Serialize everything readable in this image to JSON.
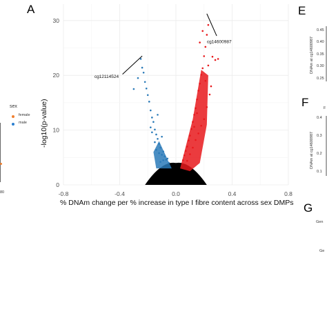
{
  "panels": {
    "a": "A",
    "e": "E",
    "f": "F",
    "g": "G"
  },
  "legend": {
    "title": "sex",
    "items": [
      {
        "label": "female",
        "color": "#f08030"
      },
      {
        "label": "male",
        "color": "#2b7fd0"
      }
    ]
  },
  "left_fragment": {
    "tick": "80"
  },
  "right_fragments": {
    "e_ylabel": "DNAm at cg14600987",
    "e_ticks": [
      "0.45",
      "0.40",
      "0.35",
      "0.30",
      "0.25"
    ],
    "f_ylabel": "DNAm at cg14600987",
    "f_title_fragment": "F",
    "f_ticks": [
      "0.4",
      "0.3",
      "0.2",
      "0.1"
    ],
    "g_lines": [
      "Gen",
      "Ge"
    ]
  },
  "colors": {
    "up": "#e8191c",
    "down": "#2a7ab8",
    "ns": "#000000",
    "grid": "#ebebeb"
  },
  "chart_data": {
    "type": "scatter",
    "title": "",
    "xlabel": "% DNAm change per % increase in type I fibre content across sex DMPs",
    "ylabel": "-log10(p-value)",
    "xlim": [
      -0.8,
      0.8
    ],
    "ylim": [
      0,
      33
    ],
    "x_ticks": [
      "-0.8",
      "-0.4",
      "0.0",
      "0.4",
      "0.8"
    ],
    "y_ticks": [
      "0",
      "10",
      "20",
      "30"
    ],
    "grid": true,
    "series": [
      {
        "group": "hypomethylated (significant)",
        "color": "#2a7ab8",
        "points": [
          [
            -0.04,
            3.2
          ],
          [
            -0.05,
            4.0
          ],
          [
            -0.06,
            3.6
          ],
          [
            -0.07,
            4.6
          ],
          [
            -0.08,
            5.2
          ],
          [
            -0.09,
            6.1
          ],
          [
            -0.1,
            5.5
          ],
          [
            -0.11,
            6.8
          ],
          [
            -0.12,
            7.5
          ],
          [
            -0.13,
            8.4
          ],
          [
            -0.14,
            9.2
          ],
          [
            -0.15,
            10.1
          ],
          [
            -0.16,
            11.5
          ],
          [
            -0.17,
            12.3
          ],
          [
            -0.18,
            13.6
          ],
          [
            -0.19,
            15.2
          ],
          [
            -0.2,
            16.4
          ],
          [
            -0.21,
            17.6
          ],
          [
            -0.22,
            18.8
          ],
          [
            -0.23,
            20.5
          ],
          [
            -0.24,
            21.4
          ],
          [
            -0.25,
            23.0
          ],
          [
            -0.27,
            19.5
          ],
          [
            -0.3,
            17.5
          ],
          [
            -0.18,
            10.5
          ],
          [
            -0.15,
            7.8
          ],
          [
            -0.12,
            5.8
          ],
          [
            -0.09,
            4.5
          ],
          [
            -0.06,
            4.8
          ],
          [
            -0.1,
            8.8
          ],
          [
            -0.13,
            12.8
          ],
          [
            -0.11,
            4.2
          ],
          [
            -0.07,
            3.4
          ],
          [
            -0.17,
            9.6
          ],
          [
            -0.14,
            6.4
          ]
        ]
      },
      {
        "group": "hypermethylated (significant)",
        "color": "#e8191c",
        "points": [
          [
            0.04,
            3.2
          ],
          [
            0.05,
            4.5
          ],
          [
            0.06,
            5.4
          ],
          [
            0.07,
            6.2
          ],
          [
            0.08,
            7.0
          ],
          [
            0.09,
            8.1
          ],
          [
            0.1,
            9.0
          ],
          [
            0.11,
            10.2
          ],
          [
            0.12,
            11.5
          ],
          [
            0.13,
            12.8
          ],
          [
            0.14,
            14.0
          ],
          [
            0.15,
            15.6
          ],
          [
            0.16,
            17.2
          ],
          [
            0.17,
            18.5
          ],
          [
            0.18,
            20.1
          ],
          [
            0.19,
            21.3
          ],
          [
            0.2,
            23.5
          ],
          [
            0.21,
            25.2
          ],
          [
            0.22,
            27.4
          ],
          [
            0.23,
            29.2
          ],
          [
            0.26,
            23.4
          ],
          [
            0.28,
            22.8
          ],
          [
            0.3,
            23.0
          ],
          [
            0.25,
            18.0
          ],
          [
            0.24,
            16.5
          ],
          [
            0.22,
            14.2
          ],
          [
            0.2,
            12.0
          ],
          [
            0.18,
            10.8
          ],
          [
            0.16,
            9.4
          ],
          [
            0.14,
            8.2
          ],
          [
            0.12,
            6.8
          ],
          [
            0.1,
            5.6
          ],
          [
            0.08,
            4.4
          ],
          [
            0.06,
            3.6
          ],
          [
            0.17,
            26.0
          ],
          [
            0.19,
            28.1
          ],
          [
            0.21,
            19.0
          ],
          [
            0.23,
            21.8
          ],
          [
            0.15,
            13.1
          ],
          [
            0.13,
            10.6
          ]
        ]
      },
      {
        "group": "not significant",
        "color": "#000000",
        "points": [
          [
            -0.15,
            0.4
          ],
          [
            -0.1,
            1.0
          ],
          [
            -0.05,
            1.8
          ],
          [
            0.0,
            2.5
          ],
          [
            0.05,
            1.9
          ],
          [
            0.1,
            1.2
          ],
          [
            0.15,
            0.5
          ],
          [
            -0.08,
            0.3
          ],
          [
            0.08,
            0.6
          ],
          [
            -0.02,
            2.1
          ],
          [
            0.02,
            2.0
          ],
          [
            -0.12,
            1.5
          ],
          [
            0.12,
            1.6
          ],
          [
            0.0,
            0.2
          ],
          [
            -0.18,
            0.8
          ],
          [
            0.18,
            0.9
          ]
        ]
      }
    ],
    "annotations": [
      {
        "label": "cg14600987",
        "x": 0.21,
        "y": 31.0
      },
      {
        "label": "cg12114524",
        "x": -0.23,
        "y": 23.6
      }
    ]
  }
}
